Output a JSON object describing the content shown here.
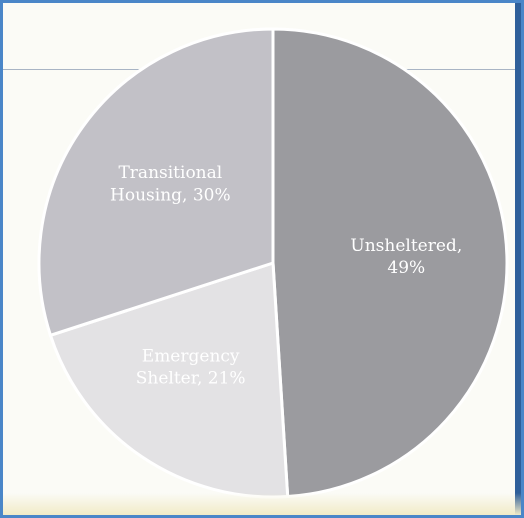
{
  "chart_data": {
    "type": "pie",
    "title": "",
    "slices": [
      {
        "label": "Unsheltered",
        "value": 49,
        "color": "#9b9b9f",
        "text_lines": [
          "Unsheltered,",
          "49%"
        ]
      },
      {
        "label": "Emergency Shelter",
        "value": 21,
        "color": "#e3e2e4",
        "text_lines": [
          "Emergency",
          "Shelter, 21%"
        ]
      },
      {
        "label": "Transitional Housing",
        "value": 30,
        "color": "#c2c1c7",
        "text_lines": [
          "Transitional",
          "Housing, 30%"
        ]
      }
    ],
    "start_angle_deg": 0,
    "direction": "clockwise",
    "legend": "none"
  }
}
